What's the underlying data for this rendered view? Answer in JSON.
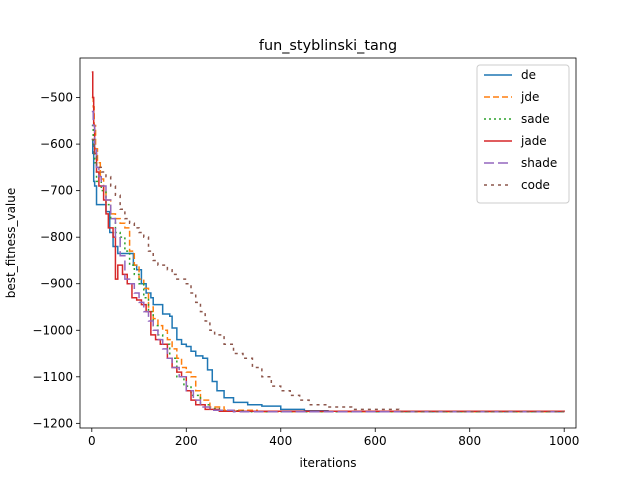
{
  "chart_data": {
    "type": "line",
    "title": "fun_styblinski_tang",
    "xlabel": "iterations",
    "ylabel": "best_fitness_value",
    "xlim": [
      -25,
      1025
    ],
    "ylim": [
      -1210,
      -415
    ],
    "xticks": [
      0,
      200,
      400,
      600,
      800,
      1000
    ],
    "yticks": [
      -1200,
      -1100,
      -1000,
      -900,
      -800,
      -700,
      -600,
      -500
    ],
    "grid": false,
    "legend_position": "top-right",
    "series": [
      {
        "name": "de",
        "color": "#1f77b4",
        "dash": "solid",
        "points": [
          [
            0,
            -590
          ],
          [
            2,
            -620
          ],
          [
            4,
            -680
          ],
          [
            6,
            -690
          ],
          [
            10,
            -730
          ],
          [
            25,
            -730
          ],
          [
            30,
            -745
          ],
          [
            38,
            -790
          ],
          [
            45,
            -820
          ],
          [
            55,
            -835
          ],
          [
            80,
            -835
          ],
          [
            88,
            -860
          ],
          [
            95,
            -870
          ],
          [
            105,
            -900
          ],
          [
            115,
            -920
          ],
          [
            125,
            -930
          ],
          [
            130,
            -945
          ],
          [
            145,
            -945
          ],
          [
            150,
            -965
          ],
          [
            165,
            -970
          ],
          [
            170,
            -995
          ],
          [
            180,
            -1020
          ],
          [
            190,
            -1030
          ],
          [
            200,
            -1035
          ],
          [
            210,
            -1045
          ],
          [
            220,
            -1055
          ],
          [
            235,
            -1060
          ],
          [
            245,
            -1085
          ],
          [
            255,
            -1110
          ],
          [
            265,
            -1130
          ],
          [
            280,
            -1145
          ],
          [
            300,
            -1155
          ],
          [
            330,
            -1160
          ],
          [
            360,
            -1163
          ],
          [
            400,
            -1170
          ],
          [
            450,
            -1173
          ],
          [
            500,
            -1174
          ],
          [
            600,
            -1175
          ],
          [
            1000,
            -1175
          ]
        ]
      },
      {
        "name": "jde",
        "color": "#ff7f0e",
        "dash": "6,3",
        "points": [
          [
            0,
            -500
          ],
          [
            3,
            -520
          ],
          [
            5,
            -560
          ],
          [
            8,
            -610
          ],
          [
            12,
            -640
          ],
          [
            18,
            -675
          ],
          [
            25,
            -700
          ],
          [
            30,
            -720
          ],
          [
            40,
            -750
          ],
          [
            50,
            -760
          ],
          [
            60,
            -770
          ],
          [
            70,
            -780
          ],
          [
            80,
            -830
          ],
          [
            90,
            -860
          ],
          [
            100,
            -890
          ],
          [
            110,
            -910
          ],
          [
            120,
            -950
          ],
          [
            130,
            -975
          ],
          [
            140,
            -990
          ],
          [
            150,
            -1000
          ],
          [
            160,
            -1020
          ],
          [
            170,
            -1040
          ],
          [
            180,
            -1060
          ],
          [
            190,
            -1080
          ],
          [
            200,
            -1090
          ],
          [
            210,
            -1100
          ],
          [
            220,
            -1130
          ],
          [
            230,
            -1150
          ],
          [
            250,
            -1165
          ],
          [
            280,
            -1172
          ],
          [
            350,
            -1175
          ],
          [
            1000,
            -1175
          ]
        ]
      },
      {
        "name": "sade",
        "color": "#2ca02c",
        "dash": "2,3",
        "points": [
          [
            0,
            -560
          ],
          [
            3,
            -600
          ],
          [
            6,
            -640
          ],
          [
            10,
            -680
          ],
          [
            20,
            -700
          ],
          [
            30,
            -730
          ],
          [
            40,
            -760
          ],
          [
            50,
            -790
          ],
          [
            60,
            -800
          ],
          [
            70,
            -830
          ],
          [
            80,
            -860
          ],
          [
            90,
            -880
          ],
          [
            100,
            -900
          ],
          [
            110,
            -930
          ],
          [
            120,
            -960
          ],
          [
            130,
            -990
          ],
          [
            140,
            -1010
          ],
          [
            150,
            -1030
          ],
          [
            165,
            -1060
          ],
          [
            180,
            -1100
          ],
          [
            195,
            -1120
          ],
          [
            210,
            -1140
          ],
          [
            230,
            -1160
          ],
          [
            250,
            -1168
          ],
          [
            270,
            -1173
          ],
          [
            320,
            -1175
          ],
          [
            1000,
            -1175
          ]
        ]
      },
      {
        "name": "jade",
        "color": "#d62728",
        "dash": "solid",
        "points": [
          [
            0,
            -445
          ],
          [
            2,
            -500
          ],
          [
            4,
            -560
          ],
          [
            6,
            -620
          ],
          [
            10,
            -660
          ],
          [
            15,
            -690
          ],
          [
            25,
            -720
          ],
          [
            30,
            -750
          ],
          [
            35,
            -780
          ],
          [
            45,
            -800
          ],
          [
            50,
            -890
          ],
          [
            55,
            -860
          ],
          [
            65,
            -880
          ],
          [
            75,
            -900
          ],
          [
            85,
            -930
          ],
          [
            95,
            -935
          ],
          [
            105,
            -945
          ],
          [
            115,
            -960
          ],
          [
            125,
            -1010
          ],
          [
            135,
            -1020
          ],
          [
            145,
            -1030
          ],
          [
            160,
            -1060
          ],
          [
            170,
            -1080
          ],
          [
            180,
            -1090
          ],
          [
            190,
            -1100
          ],
          [
            200,
            -1130
          ],
          [
            210,
            -1150
          ],
          [
            220,
            -1160
          ],
          [
            240,
            -1170
          ],
          [
            270,
            -1174
          ],
          [
            1000,
            -1175
          ]
        ]
      },
      {
        "name": "shade",
        "color": "#9467bd",
        "dash": "10,4",
        "points": [
          [
            0,
            -530
          ],
          [
            3,
            -560
          ],
          [
            6,
            -610
          ],
          [
            10,
            -650
          ],
          [
            15,
            -670
          ],
          [
            20,
            -690
          ],
          [
            30,
            -720
          ],
          [
            40,
            -760
          ],
          [
            50,
            -800
          ],
          [
            60,
            -840
          ],
          [
            70,
            -890
          ],
          [
            80,
            -900
          ],
          [
            90,
            -920
          ],
          [
            100,
            -940
          ],
          [
            110,
            -960
          ],
          [
            120,
            -980
          ],
          [
            130,
            -1000
          ],
          [
            140,
            -1020
          ],
          [
            150,
            -1040
          ],
          [
            160,
            -1060
          ],
          [
            170,
            -1080
          ],
          [
            185,
            -1100
          ],
          [
            200,
            -1130
          ],
          [
            215,
            -1150
          ],
          [
            230,
            -1165
          ],
          [
            250,
            -1172
          ],
          [
            300,
            -1175
          ],
          [
            1000,
            -1175
          ]
        ]
      },
      {
        "name": "code",
        "color": "#8c564b",
        "dash": "3,4",
        "points": [
          [
            0,
            -590
          ],
          [
            5,
            -620
          ],
          [
            10,
            -650
          ],
          [
            20,
            -660
          ],
          [
            30,
            -670
          ],
          [
            40,
            -690
          ],
          [
            50,
            -710
          ],
          [
            60,
            -740
          ],
          [
            70,
            -760
          ],
          [
            80,
            -770
          ],
          [
            90,
            -780
          ],
          [
            100,
            -790
          ],
          [
            110,
            -800
          ],
          [
            120,
            -830
          ],
          [
            130,
            -850
          ],
          [
            140,
            -860
          ],
          [
            160,
            -870
          ],
          [
            170,
            -880
          ],
          [
            180,
            -890
          ],
          [
            200,
            -900
          ],
          [
            210,
            -920
          ],
          [
            220,
            -940
          ],
          [
            230,
            -960
          ],
          [
            240,
            -980
          ],
          [
            250,
            -1000
          ],
          [
            260,
            -1010
          ],
          [
            280,
            -1030
          ],
          [
            300,
            -1050
          ],
          [
            320,
            -1060
          ],
          [
            340,
            -1080
          ],
          [
            360,
            -1100
          ],
          [
            380,
            -1120
          ],
          [
            400,
            -1130
          ],
          [
            420,
            -1140
          ],
          [
            440,
            -1150
          ],
          [
            460,
            -1160
          ],
          [
            500,
            -1165
          ],
          [
            550,
            -1170
          ],
          [
            650,
            -1175
          ],
          [
            1000,
            -1175
          ]
        ]
      }
    ]
  }
}
